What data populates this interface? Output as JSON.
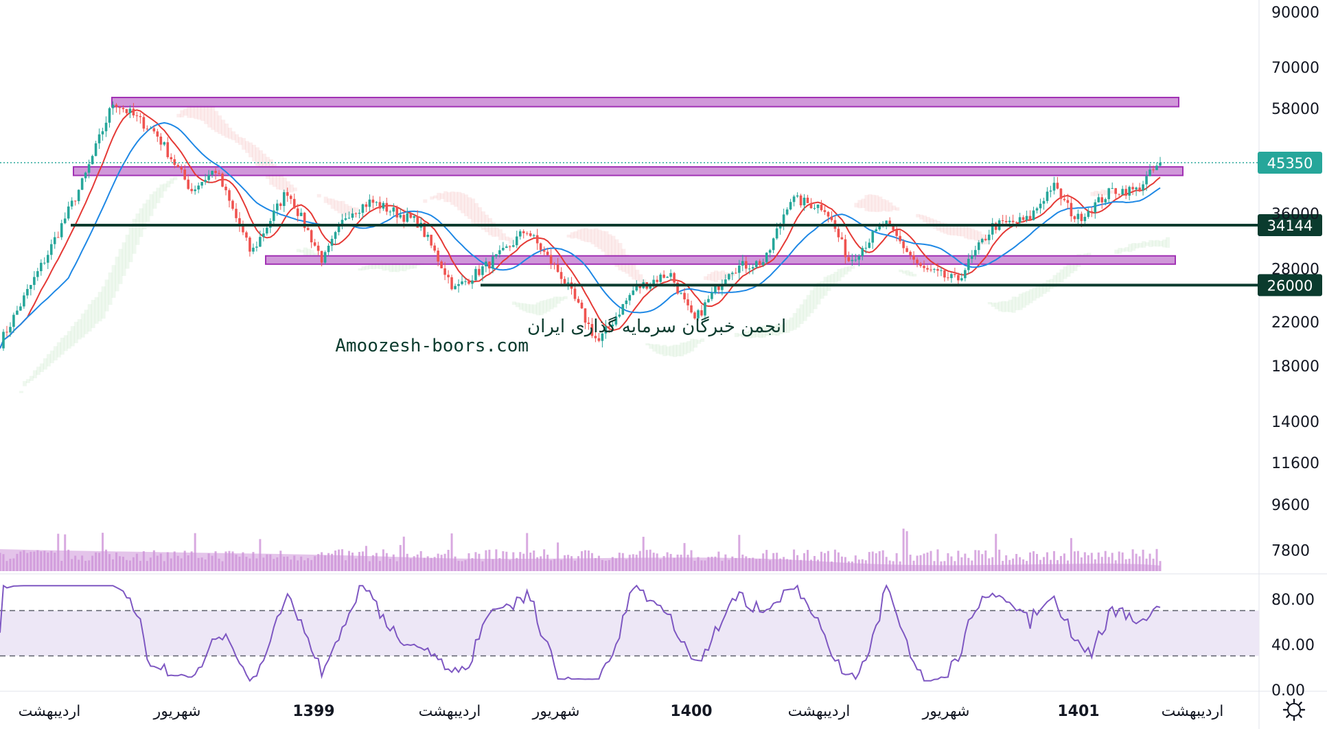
{
  "chart_data": {
    "type": "candlestick",
    "scale": "log",
    "ylim": [
      7000,
      95000
    ],
    "y_ticks": [
      "90000",
      "70000",
      "58000",
      "36000",
      "28000",
      "22000",
      "18000",
      "14000",
      "11600",
      "9600",
      "7800"
    ],
    "x_ticks": [
      {
        "label": "اردیبهشت",
        "bold": false
      },
      {
        "label": "شهریور",
        "bold": false
      },
      {
        "label": "1399",
        "bold": true
      },
      {
        "label": "اردیبهشت",
        "bold": false
      },
      {
        "label": "شهریور",
        "bold": false
      },
      {
        "label": "1400",
        "bold": true
      },
      {
        "label": "اردیبهشت",
        "bold": false
      },
      {
        "label": "شهریور",
        "bold": false
      },
      {
        "label": "1401",
        "bold": true
      },
      {
        "label": "اردیبهشت",
        "bold": false
      }
    ],
    "last_price": {
      "value": 45350,
      "label": "45350",
      "color": "#26a69a"
    },
    "horizontal_lines": [
      {
        "value": 34144,
        "label": "34144",
        "color": "#0b3b2e"
      },
      {
        "value": 26000,
        "label": "26000",
        "color": "#0b3b2e"
      }
    ],
    "zones": [
      {
        "low": 58500,
        "high": 61000,
        "color": "#ce93d8"
      },
      {
        "low": 42800,
        "high": 44500,
        "color": "#ce93d8"
      },
      {
        "low": 28600,
        "high": 29700,
        "color": "#ce93d8"
      }
    ],
    "path_keypoints": [
      {
        "t": 0.0,
        "v": 20000
      },
      {
        "t": 0.04,
        "v": 30000
      },
      {
        "t": 0.07,
        "v": 42000
      },
      {
        "t": 0.095,
        "v": 60000
      },
      {
        "t": 0.13,
        "v": 52000
      },
      {
        "t": 0.16,
        "v": 40000
      },
      {
        "t": 0.18,
        "v": 44000
      },
      {
        "t": 0.21,
        "v": 30000
      },
      {
        "t": 0.24,
        "v": 40000
      },
      {
        "t": 0.27,
        "v": 29000
      },
      {
        "t": 0.29,
        "v": 36000
      },
      {
        "t": 0.31,
        "v": 38000
      },
      {
        "t": 0.35,
        "v": 34500
      },
      {
        "t": 0.38,
        "v": 25500
      },
      {
        "t": 0.42,
        "v": 30000
      },
      {
        "t": 0.44,
        "v": 33500
      },
      {
        "t": 0.47,
        "v": 27000
      },
      {
        "t": 0.5,
        "v": 20000
      },
      {
        "t": 0.53,
        "v": 25500
      },
      {
        "t": 0.56,
        "v": 27500
      },
      {
        "t": 0.58,
        "v": 22000
      },
      {
        "t": 0.61,
        "v": 28000
      },
      {
        "t": 0.64,
        "v": 29000
      },
      {
        "t": 0.66,
        "v": 38500
      },
      {
        "t": 0.69,
        "v": 37000
      },
      {
        "t": 0.71,
        "v": 29000
      },
      {
        "t": 0.74,
        "v": 34500
      },
      {
        "t": 0.77,
        "v": 28000
      },
      {
        "t": 0.8,
        "v": 26500
      },
      {
        "t": 0.83,
        "v": 34000
      },
      {
        "t": 0.86,
        "v": 35000
      },
      {
        "t": 0.88,
        "v": 41000
      },
      {
        "t": 0.9,
        "v": 35000
      },
      {
        "t": 0.93,
        "v": 40000
      },
      {
        "t": 0.95,
        "v": 40000
      },
      {
        "t": 0.97,
        "v": 45350
      }
    ],
    "rsi": {
      "ylim": [
        0,
        100
      ],
      "ticks": [
        "80.00",
        "40.00",
        "0.00"
      ],
      "band": [
        30,
        70
      ],
      "color": "#7e57c2",
      "band_color": "#ede7f6"
    },
    "volume": {
      "color": "#ce93d8"
    },
    "moving_averages": [
      {
        "color": "#e53935"
      },
      {
        "color": "#1e88e5"
      }
    ],
    "watermark": {
      "line1": "انجمن خبرگان سرمایه گذاری ایران",
      "line2": "Amoozesh-boors.com"
    }
  },
  "toolbar": {
    "settings_icon": "gear-icon"
  }
}
